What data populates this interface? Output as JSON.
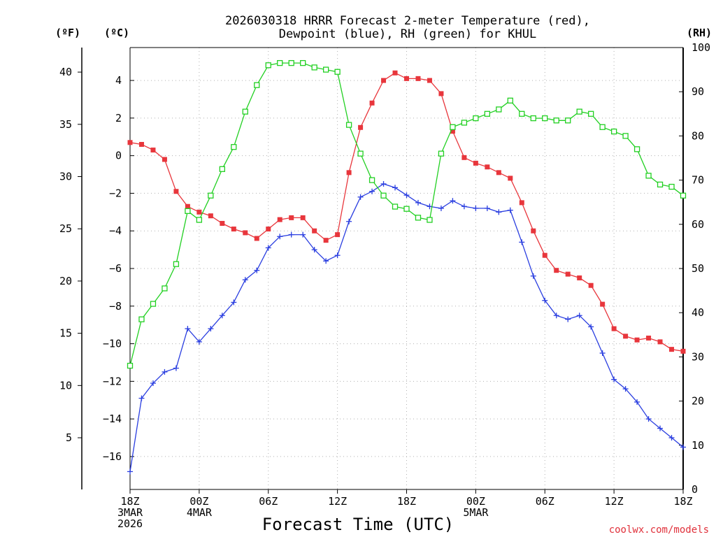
{
  "chart_data": {
    "type": "line",
    "title_line1": "2026030318 HRRR Forecast 2-meter Temperature (red),",
    "title_line2": "Dewpoint (blue), RH (green) for KHUL",
    "xlabel": "Forecast Time (UTC)",
    "credit": "coolwx.com/models",
    "unit_f": "(ºF)",
    "unit_c": "(ºC)",
    "unit_rh": "(RH)",
    "x_hours": [
      0,
      1,
      2,
      3,
      4,
      5,
      6,
      7,
      8,
      9,
      10,
      11,
      12,
      13,
      14,
      15,
      16,
      17,
      18,
      19,
      20,
      21,
      22,
      23,
      24,
      25,
      26,
      27,
      28,
      29,
      30,
      31,
      32,
      33,
      34,
      35,
      36,
      37,
      38,
      39,
      40,
      41,
      42,
      43,
      44,
      45,
      46,
      47,
      48
    ],
    "xlim": [
      0,
      48
    ],
    "x_ticks": [
      {
        "hour": 0,
        "line1": "18Z",
        "line2": "3MAR",
        "line3": "2026"
      },
      {
        "hour": 6,
        "line1": "00Z",
        "line2": "4MAR",
        "line3": ""
      },
      {
        "hour": 12,
        "line1": "06Z",
        "line2": "",
        "line3": ""
      },
      {
        "hour": 18,
        "line1": "12Z",
        "line2": "",
        "line3": ""
      },
      {
        "hour": 24,
        "line1": "18Z",
        "line2": "",
        "line3": ""
      },
      {
        "hour": 30,
        "line1": "00Z",
        "line2": "5MAR",
        "line3": ""
      },
      {
        "hour": 36,
        "line1": "06Z",
        "line2": "",
        "line3": ""
      },
      {
        "hour": 42,
        "line1": "12Z",
        "line2": "",
        "line3": ""
      },
      {
        "hour": 48,
        "line1": "18Z",
        "line2": "",
        "line3": ""
      }
    ],
    "ylim_c": [
      -17.75,
      5.75
    ],
    "ylim_rh": [
      0,
      100
    ],
    "ylim_f": [
      0.05,
      42.35
    ],
    "y_ticks_c": [
      -16,
      -14,
      -12,
      -10,
      -8,
      -6,
      -4,
      -2,
      0,
      2,
      4
    ],
    "y_ticks_f": [
      5,
      10,
      15,
      20,
      25,
      30,
      35,
      40
    ],
    "y_ticks_rh": [
      0,
      10,
      20,
      30,
      40,
      50,
      60,
      70,
      80,
      90,
      100
    ],
    "grid": true,
    "series": [
      {
        "name": "Temperature",
        "units": "degC",
        "color": "#e8363c",
        "marker": "filled-square",
        "values": [
          0.7,
          0.6,
          0.3,
          -0.2,
          -1.9,
          -2.7,
          -3.0,
          -3.2,
          -3.6,
          -3.9,
          -4.1,
          -4.4,
          -3.9,
          -3.4,
          -3.3,
          -3.3,
          -4.0,
          -4.5,
          -4.2,
          -0.9,
          1.5,
          2.8,
          4.0,
          4.4,
          4.1,
          4.1,
          4.0,
          3.3,
          1.3,
          -0.1,
          -0.4,
          -0.6,
          -0.9,
          -1.2,
          -2.5,
          -4.0,
          -5.3,
          -6.1,
          -6.3,
          -6.5,
          -6.9,
          -7.9,
          -9.2,
          -9.6,
          -9.8,
          -9.7,
          -9.9,
          -10.3,
          -10.4
        ]
      },
      {
        "name": "Dewpoint",
        "units": "degC",
        "color": "#2a3ee0",
        "marker": "plus",
        "values": [
          -16.8,
          -12.9,
          -12.1,
          -11.5,
          -11.3,
          -9.2,
          -9.9,
          -9.2,
          -8.5,
          -7.8,
          -6.6,
          -6.1,
          -4.9,
          -4.3,
          -4.2,
          -4.2,
          -5.0,
          -5.6,
          -5.3,
          -3.5,
          -2.2,
          -1.9,
          -1.5,
          -1.7,
          -2.1,
          -2.5,
          -2.7,
          -2.8,
          -2.4,
          -2.7,
          -2.8,
          -2.8,
          -3.0,
          -2.9,
          -4.6,
          -6.4,
          -7.7,
          -8.5,
          -8.7,
          -8.5,
          -9.1,
          -10.5,
          -11.9,
          -12.4,
          -13.1,
          -14.0,
          -14.5,
          -15.0,
          -15.5
        ]
      },
      {
        "name": "RH",
        "units": "%",
        "color": "#22d022",
        "marker": "open-square",
        "values": [
          28,
          38.5,
          42,
          45.5,
          51,
          63,
          61,
          66.5,
          72.5,
          77.5,
          85.5,
          91.5,
          96,
          96.5,
          96.5,
          96.5,
          95.5,
          95,
          94.5,
          82.5,
          76,
          70,
          66.5,
          64,
          63.5,
          61.5,
          61,
          76,
          82,
          83,
          84,
          85,
          86,
          88,
          85,
          84,
          84,
          83.5,
          83.5,
          85.5,
          85,
          82,
          81,
          80,
          77,
          71,
          69,
          68.5,
          66.5
        ]
      }
    ]
  }
}
